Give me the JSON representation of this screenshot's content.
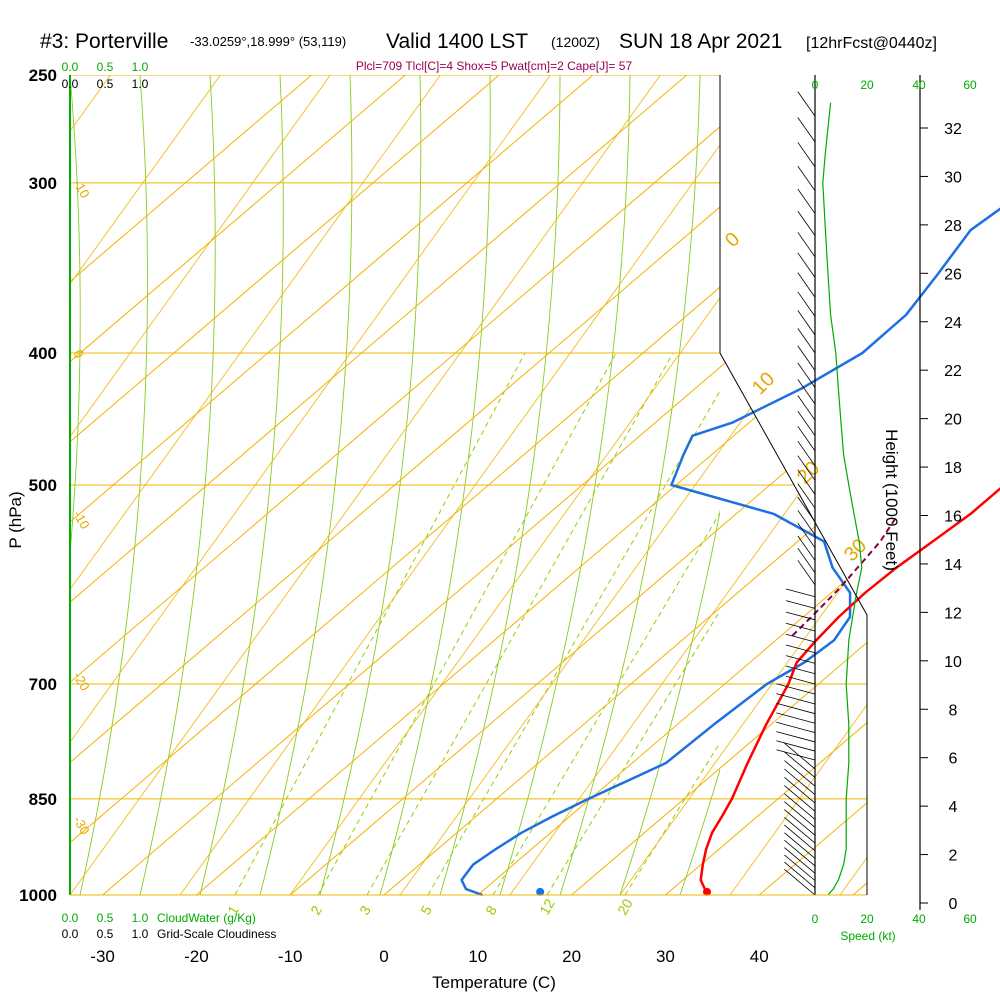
{
  "header": {
    "station": "#3: Porterville",
    "coords": "-33.0259°,18.999° (53,119)",
    "valid": "Valid 1400 LST",
    "utc": "(1200Z)",
    "date": "SUN 18 Apr 2021",
    "forecast": "[12hrFcst@0440z]",
    "indices": "Plcl=709 Tlcl[C]=4 Shox=5 Pwat[cm]=2 Cape[J]= 57"
  },
  "axes": {
    "pressure_label": "P (hPa)",
    "temperature_label": "Temperature (C)",
    "height_label": "Height (1000 Feet)",
    "speed_label": "Speed (kt)",
    "cloudwater_label": "CloudWater (g/Kg)",
    "cloudiness_label": "Grid-Scale Cloudiness"
  },
  "colors": {
    "temperature": "#ff0000",
    "dewpoint": "#1e6fe0",
    "isobar_isotherm": "#f0b400",
    "mixing_ratio": "#99cc00",
    "moist_adiabat": "#88cc22",
    "parcel": "#880044",
    "cloudwater": "#00aa00"
  },
  "chart_data": {
    "type": "skew-t",
    "x_axis": {
      "range": [
        -35,
        45
      ],
      "ticks": [
        -30,
        -20,
        -10,
        0,
        10,
        20,
        30,
        40
      ]
    },
    "y_axis": {
      "scale": "log",
      "range_hpa": [
        1000,
        250
      ],
      "ticks": [
        1000,
        850,
        700,
        500,
        400,
        300,
        250
      ]
    },
    "isotherm_labels": [
      {
        "label": "-10",
        "p": 300
      },
      {
        "label": "0",
        "p": 400
      },
      {
        "label": "-10",
        "p": 525
      },
      {
        "label": "-20",
        "p": 690
      },
      {
        "label": "-30",
        "p": 880
      }
    ],
    "dry_adiabat_labels": [
      {
        "label": "0",
        "p": 335
      },
      {
        "label": "10",
        "p": 430
      },
      {
        "label": "20",
        "p": 500
      },
      {
        "label": "30",
        "p": 570
      }
    ],
    "mixing_ratio_labels": [
      "1",
      "2",
      "3",
      "5",
      "8",
      "12",
      "20"
    ],
    "temperature": {
      "name": "Temperature",
      "points": [
        [
          1000,
          34.5
        ],
        [
          975,
          31.9
        ],
        [
          950,
          30.2
        ],
        [
          925,
          28.6
        ],
        [
          900,
          27.2
        ],
        [
          875,
          26.2
        ],
        [
          850,
          25.1
        ],
        [
          800,
          22.3
        ],
        [
          750,
          19.5
        ],
        [
          700,
          16.8
        ],
        [
          675,
          15.0
        ],
        [
          650,
          14.3
        ],
        [
          625,
          13.8
        ],
        [
          600,
          13.6
        ],
        [
          575,
          13.8
        ],
        [
          550,
          14.4
        ],
        [
          525,
          15.0
        ],
        [
          500,
          15.0
        ],
        [
          475,
          14.0
        ],
        [
          450,
          12.2
        ],
        [
          425,
          9.6
        ],
        [
          400,
          6.2
        ],
        [
          375,
          3.0
        ],
        [
          350,
          0.2
        ],
        [
          325,
          -3.2
        ],
        [
          300,
          -6.8
        ],
        [
          275,
          -10.2
        ],
        [
          262,
          -12.6
        ]
      ]
    },
    "dewpoint": {
      "name": "Dewpoint",
      "points": [
        [
          1000,
          10.5
        ],
        [
          990,
          8.0
        ],
        [
          975,
          6.4
        ],
        [
          950,
          5.7
        ],
        [
          925,
          6.2
        ],
        [
          900,
          6.9
        ],
        [
          875,
          8.2
        ],
        [
          850,
          9.8
        ],
        [
          800,
          13.6
        ],
        [
          750,
          13.9
        ],
        [
          700,
          14.5
        ],
        [
          675,
          15.8
        ],
        [
          650,
          16.2
        ],
        [
          625,
          15.0
        ],
        [
          600,
          12.0
        ],
        [
          575,
          7.0
        ],
        [
          550,
          2.8
        ],
        [
          525,
          -6.0
        ],
        [
          500,
          -20.5
        ],
        [
          475,
          -23.0
        ],
        [
          460,
          -24.4
        ],
        [
          450,
          -21.8
        ],
        [
          425,
          -18.7
        ],
        [
          400,
          -16.6
        ],
        [
          375,
          -16.7
        ],
        [
          350,
          -18.4
        ],
        [
          325,
          -20.4
        ],
        [
          300,
          -19.3
        ],
        [
          285,
          -17.6
        ],
        [
          262,
          -15.2
        ]
      ]
    },
    "parcel": {
      "name": "Parcel",
      "points": [
        [
          645,
          11.2
        ],
        [
          620,
          10.8
        ],
        [
          595,
          10.3
        ],
        [
          570,
          9.5
        ],
        [
          550,
          8.8
        ],
        [
          530,
          7.6
        ]
      ]
    },
    "surface_dewpoint_marker": {
      "p": 998,
      "t": 16.5
    },
    "surface_temperature_marker": {
      "p": 998,
      "t": 34.5
    },
    "height_axis": {
      "ticks": [
        0,
        2,
        4,
        6,
        8,
        10,
        12,
        14,
        16,
        18,
        20,
        22,
        24,
        26,
        28,
        30,
        32
      ]
    },
    "speed_axis": {
      "ticks": [
        0,
        20,
        40,
        60
      ]
    },
    "cloud_axis": {
      "ticks": [
        "0.0",
        "0.5",
        "1.0"
      ]
    },
    "wind_speed_profile": [
      [
        1000,
        5
      ],
      [
        990,
        7
      ],
      [
        975,
        9
      ],
      [
        950,
        11
      ],
      [
        925,
        12
      ],
      [
        900,
        12
      ],
      [
        875,
        12
      ],
      [
        850,
        12
      ],
      [
        800,
        13
      ],
      [
        750,
        13
      ],
      [
        700,
        12
      ],
      [
        650,
        13
      ],
      [
        600,
        16
      ],
      [
        575,
        18
      ],
      [
        550,
        17
      ],
      [
        525,
        15
      ],
      [
        500,
        13
      ],
      [
        475,
        11
      ],
      [
        450,
        10
      ],
      [
        425,
        9
      ],
      [
        400,
        8
      ],
      [
        375,
        6
      ],
      [
        350,
        5
      ],
      [
        325,
        4
      ],
      [
        300,
        3
      ],
      [
        285,
        4
      ],
      [
        262,
        6
      ]
    ]
  }
}
